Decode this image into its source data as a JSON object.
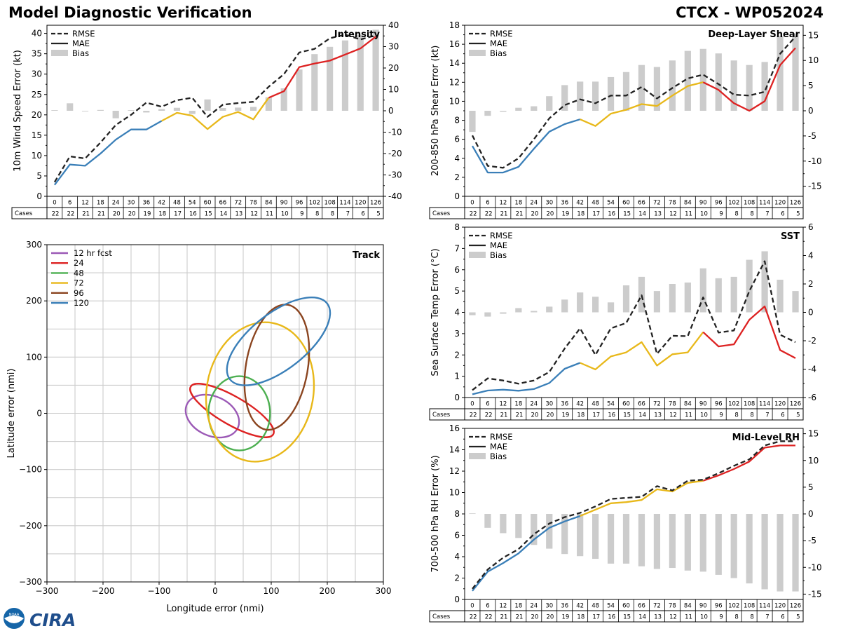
{
  "header": {
    "title_left": "Model Diagnostic Verification",
    "title_right": "CTCX - WP052024"
  },
  "logo": {
    "text": "CIRA",
    "badge": "NOAA"
  },
  "colors": {
    "rmse": "#222222",
    "pre_stage": "#3a7fb8",
    "mid_stage": "#e8b81a",
    "late_stage": "#dd2222",
    "bias": "#cccccc",
    "grid": "#cccccc"
  },
  "legend_labels": {
    "rmse": "RMSE",
    "mae": "MAE",
    "bias": "Bias"
  },
  "cases_label": "Cases",
  "forecast_hours": [
    0,
    6,
    12,
    18,
    24,
    30,
    36,
    42,
    48,
    54,
    60,
    66,
    72,
    78,
    84,
    90,
    96,
    102,
    108,
    114,
    120,
    126
  ],
  "cases": [
    22,
    22,
    21,
    21,
    20,
    20,
    19,
    18,
    17,
    16,
    15,
    14,
    13,
    12,
    11,
    10,
    9,
    8,
    8,
    7,
    6,
    5
  ],
  "chart_data": [
    {
      "id": "intensity",
      "type": "line",
      "title": "Intensity",
      "ylabel": "10m Wind Speed Error (kt)",
      "ylim": [
        0,
        42
      ],
      "yticks": [
        0,
        5,
        10,
        15,
        20,
        25,
        30,
        35,
        40
      ],
      "y2lim": [
        -40,
        40
      ],
      "y2ticks": [
        -40,
        -30,
        -20,
        -10,
        0,
        10,
        20,
        30,
        40
      ],
      "mae_segments": [
        [
          0,
          7
        ],
        [
          7,
          14
        ],
        [
          14,
          21
        ]
      ],
      "rmse": [
        3.5,
        9.8,
        9.3,
        13.2,
        17.5,
        20,
        23,
        22,
        23.6,
        24.2,
        19.5,
        22.5,
        22.9,
        23.2,
        26.9,
        30,
        35.3,
        36.2,
        38.8,
        39.7,
        38.5,
        39.5
      ],
      "mae": [
        2.8,
        7.8,
        7.5,
        10.5,
        13.9,
        16.4,
        16.4,
        18.5,
        20.5,
        19.8,
        16.5,
        19.5,
        20.7,
        18.9,
        24.2,
        25.8,
        31.7,
        32.6,
        33.3,
        34.8,
        36.3,
        39.2
      ],
      "bias": [
        0.3,
        3.5,
        -0.3,
        0.4,
        -3.5,
        0.3,
        -0.8,
        0.8,
        1.4,
        -1.5,
        5.3,
        1.3,
        1.5,
        1.8,
        6.3,
        10.5,
        19.3,
        26.5,
        29.9,
        32.9,
        35.5,
        37.9
      ]
    },
    {
      "id": "shear",
      "type": "line",
      "title": "Deep-Layer Shear",
      "ylabel": "200-850 hPa Shear Error (kt)",
      "ylim": [
        0,
        18
      ],
      "yticks": [
        0,
        2,
        4,
        6,
        8,
        10,
        12,
        14,
        16,
        18
      ],
      "y2lim": [
        -17,
        17
      ],
      "y2ticks": [
        -15,
        -10,
        -5,
        0,
        5,
        10,
        15
      ],
      "mae_segments": [
        [
          0,
          7
        ],
        [
          7,
          15
        ],
        [
          15,
          21
        ]
      ],
      "rmse": [
        6.4,
        3.2,
        3.0,
        4.0,
        6.0,
        8.2,
        9.6,
        10.2,
        9.8,
        10.6,
        10.6,
        11.5,
        10.3,
        11.4,
        12.4,
        12.8,
        11.8,
        10.7,
        10.6,
        11.0,
        15.0,
        16.8
      ],
      "mae": [
        5.3,
        2.5,
        2.5,
        3.1,
        5.0,
        6.8,
        7.6,
        8.1,
        7.4,
        8.7,
        9.1,
        9.7,
        9.5,
        10.6,
        11.6,
        12.0,
        11.2,
        9.8,
        9.0,
        10.0,
        13.8,
        15.6
      ],
      "bias": [
        -4.2,
        -1.0,
        -0.2,
        0.6,
        0.9,
        2.9,
        5.1,
        5.8,
        5.8,
        6.7,
        7.7,
        9.1,
        8.7,
        10.0,
        11.9,
        12.3,
        11.4,
        10.0,
        9.1,
        9.7,
        14.9,
        15.3
      ]
    },
    {
      "id": "sst",
      "type": "line",
      "title": "SST",
      "ylabel": "Sea Surface Temp Error (°C)",
      "ylim": [
        0,
        8
      ],
      "yticks": [
        0,
        1,
        2,
        3,
        4,
        5,
        6,
        7,
        8
      ],
      "y2lim": [
        -6,
        6
      ],
      "y2ticks": [
        -6,
        -4,
        -2,
        0,
        2,
        4,
        6
      ],
      "mae_segments": [
        [
          0,
          7
        ],
        [
          7,
          15
        ],
        [
          15,
          21
        ]
      ],
      "rmse": [
        0.35,
        0.9,
        0.8,
        0.65,
        0.8,
        1.2,
        2.3,
        3.25,
        2.0,
        3.25,
        3.5,
        4.8,
        2.05,
        2.9,
        2.88,
        4.7,
        3.05,
        3.15,
        5.0,
        6.4,
        2.95,
        2.6
      ],
      "mae": [
        0.15,
        0.33,
        0.37,
        0.32,
        0.4,
        0.68,
        1.35,
        1.63,
        1.32,
        1.93,
        2.12,
        2.6,
        1.5,
        2.03,
        2.12,
        3.07,
        2.4,
        2.5,
        3.65,
        4.28,
        2.23,
        1.85
      ],
      "bias": [
        -0.2,
        -0.3,
        -0.1,
        0.3,
        0.1,
        0.4,
        0.9,
        1.4,
        1.1,
        0.7,
        1.9,
        2.5,
        1.5,
        2.0,
        2.1,
        3.1,
        2.4,
        2.5,
        3.7,
        4.3,
        2.3,
        1.5
      ]
    },
    {
      "id": "rh",
      "type": "line",
      "title": "Mid-Level RH",
      "ylabel": "700-500 hPa RH Error (%)",
      "ylim": [
        0,
        16
      ],
      "yticks": [
        0,
        2,
        4,
        6,
        8,
        10,
        12,
        14,
        16
      ],
      "y2lim": [
        -16,
        16
      ],
      "y2ticks": [
        -15,
        -10,
        -5,
        0,
        5,
        10,
        15
      ],
      "mae_segments": [
        [
          0,
          7
        ],
        [
          7,
          15
        ],
        [
          15,
          21
        ]
      ],
      "rmse": [
        1.0,
        2.8,
        3.9,
        4.7,
        6.1,
        7.1,
        7.7,
        8.1,
        8.7,
        9.4,
        9.5,
        9.6,
        10.6,
        10.2,
        11.1,
        11.2,
        11.8,
        12.5,
        13.1,
        14.4,
        14.8,
        14.8
      ],
      "mae": [
        0.8,
        2.6,
        3.4,
        4.3,
        5.6,
        6.7,
        7.3,
        7.8,
        8.4,
        9.0,
        9.1,
        9.3,
        10.3,
        10.1,
        10.9,
        11.1,
        11.6,
        12.2,
        12.9,
        14.2,
        14.4,
        14.4
      ],
      "bias": [
        0.1,
        -2.6,
        -3.6,
        -4.5,
        -5.8,
        -6.5,
        -7.5,
        -7.9,
        -8.4,
        -9.3,
        -9.3,
        -9.8,
        -10.3,
        -10.1,
        -10.6,
        -10.8,
        -11.4,
        -12.0,
        -13.0,
        -14.1,
        -14.5,
        -14.5
      ]
    },
    {
      "id": "track",
      "type": "scatter",
      "title": "Track",
      "xlabel": "Longitude error (nmi)",
      "ylabel": "Latitude error (nmi)",
      "xlim": [
        -300,
        300
      ],
      "ylim": [
        -300,
        300
      ],
      "xticks": [
        -300,
        -200,
        -100,
        0,
        100,
        200,
        300
      ],
      "yticks": [
        -300,
        -200,
        -100,
        0,
        100,
        200,
        300
      ],
      "ellipses": [
        {
          "label": "12 hr fcst",
          "color": "#9b59b6",
          "cx": -5,
          "cy": -5,
          "rx": 50,
          "ry": 35,
          "angle_deg": -25
        },
        {
          "label": "24",
          "color": "#dd2222",
          "cx": 30,
          "cy": 5,
          "rx": 85,
          "ry": 25,
          "angle_deg": -30
        },
        {
          "label": "48",
          "color": "#4caf50",
          "cx": 43,
          "cy": 0,
          "rx": 55,
          "ry": 66,
          "angle_deg": 0
        },
        {
          "label": "72",
          "color": "#e8b81a",
          "cx": 80,
          "cy": 38,
          "rx": 125,
          "ry": 95,
          "angle_deg": 80
        },
        {
          "label": "96",
          "color": "#8b4520",
          "cx": 110,
          "cy": 82,
          "rx": 113,
          "ry": 55,
          "angle_deg": 80
        },
        {
          "label": "120",
          "color": "#3a7fb8",
          "cx": 113,
          "cy": 128,
          "rx": 110,
          "ry": 50,
          "angle_deg": 38
        }
      ]
    }
  ]
}
